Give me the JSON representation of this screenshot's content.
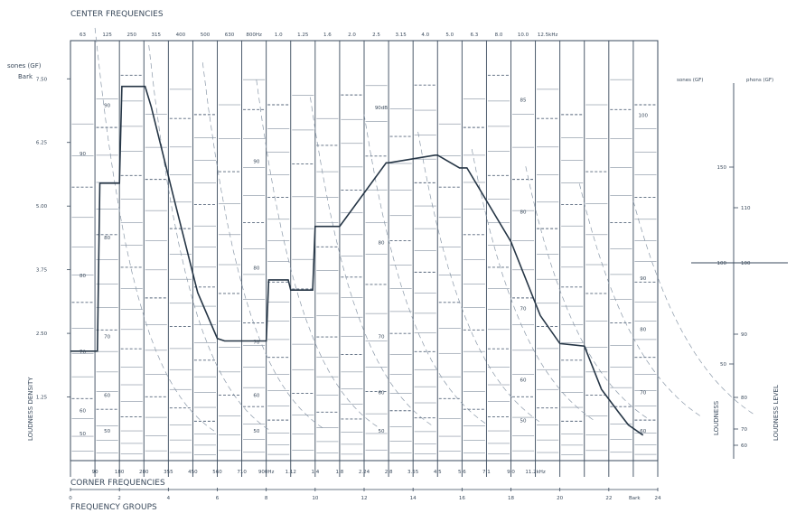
{
  "chart_data": {
    "type": "line",
    "top_title": "CENTER FREQUENCIES",
    "center_frequencies": [
      "63",
      "125",
      "250",
      "315",
      "400",
      "500",
      "630",
      "800Hz",
      "1.0",
      "1.25",
      "1.6",
      "2.0",
      "2.5",
      "3.15",
      "4.0",
      "5.0",
      "6.3",
      "8.0",
      "10.0",
      "12.5kHz"
    ],
    "corner_title": "CORNER FREQUENCIES",
    "corner_frequencies": [
      "90",
      "180",
      "280",
      "355",
      "450",
      "560",
      "710",
      "900Hz",
      "1.12",
      "1.4",
      "1.8",
      "2.24",
      "2.8",
      "3.55",
      "4.5",
      "5.6",
      "7.1",
      "9.0",
      "11.2kHz"
    ],
    "bottom_title": "FREQUENCY GROUPS",
    "frequency_groups": [
      "0",
      "2",
      "4",
      "6",
      "8",
      "10",
      "12",
      "14",
      "16",
      "18",
      "20",
      "22",
      "24"
    ],
    "bark_unit": "Bark",
    "ylabel_top": "sones (GF)",
    "ylabel_unit": "Bark",
    "ylabel_side": "LOUDNESS DENSITY",
    "y_ticks": [
      "1.25",
      "2.50",
      "3.75",
      "5.00",
      "6.25",
      "7.50"
    ],
    "ylim": [
      0,
      8.25
    ],
    "xlim_bark": [
      0,
      24
    ],
    "band_edges_bark": [
      0,
      1,
      2,
      3,
      4,
      5,
      6,
      7,
      8,
      9,
      10,
      11,
      12,
      13,
      14,
      15,
      16,
      17,
      18,
      19,
      20,
      21,
      22,
      23,
      24
    ],
    "series": [
      {
        "x_bark": [
          0,
          0.05,
          1.1,
          1.2,
          2.0,
          2.1,
          3.05,
          3.3,
          4.2,
          5.2,
          6.0,
          6.3,
          8.0,
          8.1,
          8.9,
          9.0,
          9.9,
          10.0,
          10.9,
          11.0,
          12.9,
          13.0,
          14.9,
          15.0,
          15.9,
          16.2,
          18.0,
          19.2,
          20.0,
          21.0,
          21.7,
          22.4,
          22.8,
          23.4
        ],
        "y": [
          2.15,
          2.15,
          2.15,
          5.45,
          5.45,
          7.35,
          7.35,
          6.95,
          5.2,
          3.3,
          2.4,
          2.35,
          2.35,
          3.55,
          3.55,
          3.35,
          3.35,
          4.6,
          4.6,
          4.6,
          5.85,
          5.85,
          6.0,
          6.0,
          5.75,
          5.75,
          4.3,
          2.85,
          2.3,
          2.25,
          1.4,
          0.95,
          0.7,
          0.5
        ]
      }
    ],
    "band_level_labels": [
      {
        "bark": 0.5,
        "y": 0.5,
        "label": "50"
      },
      {
        "bark": 0.5,
        "y": 0.95,
        "label": "60"
      },
      {
        "bark": 0.5,
        "y": 2.1,
        "label": "70"
      },
      {
        "bark": 0.5,
        "y": 3.6,
        "label": "80"
      },
      {
        "bark": 0.5,
        "y": 6.0,
        "label": "90"
      },
      {
        "bark": 1.5,
        "y": 0.55,
        "label": "50"
      },
      {
        "bark": 1.5,
        "y": 1.25,
        "label": "60"
      },
      {
        "bark": 1.5,
        "y": 2.4,
        "label": "70"
      },
      {
        "bark": 1.5,
        "y": 4.35,
        "label": "80"
      },
      {
        "bark": 1.5,
        "y": 6.95,
        "label": "90"
      },
      {
        "bark": 7.6,
        "y": 0.55,
        "label": "50"
      },
      {
        "bark": 7.6,
        "y": 1.25,
        "label": "60"
      },
      {
        "bark": 7.6,
        "y": 2.3,
        "label": "70"
      },
      {
        "bark": 7.6,
        "y": 3.75,
        "label": "80"
      },
      {
        "bark": 7.6,
        "y": 5.85,
        "label": "90"
      },
      {
        "bark": 12.7,
        "y": 0.55,
        "label": "50"
      },
      {
        "bark": 12.7,
        "y": 1.3,
        "label": "60"
      },
      {
        "bark": 12.7,
        "y": 2.4,
        "label": "70"
      },
      {
        "bark": 12.7,
        "y": 4.25,
        "label": "80"
      },
      {
        "bark": 12.7,
        "y": 6.9,
        "label": "90dB"
      },
      {
        "bark": 18.5,
        "y": 0.75,
        "label": "50"
      },
      {
        "bark": 18.5,
        "y": 1.55,
        "label": "60"
      },
      {
        "bark": 18.5,
        "y": 2.95,
        "label": "70"
      },
      {
        "bark": 18.5,
        "y": 4.85,
        "label": "80"
      },
      {
        "bark": 18.5,
        "y": 7.05,
        "label": "85"
      },
      {
        "bark": 23.4,
        "y": 0.55,
        "label": "60"
      },
      {
        "bark": 23.4,
        "y": 1.3,
        "label": "70"
      },
      {
        "bark": 23.4,
        "y": 2.55,
        "label": "80"
      },
      {
        "bark": 23.4,
        "y": 3.55,
        "label": "90"
      },
      {
        "bark": 23.4,
        "y": 6.75,
        "label": "100"
      }
    ],
    "right_scale": {
      "left_header": "sones (GF)",
      "right_header": "phons (GF)",
      "left_label": "LOUDNESS",
      "right_label": "LOUDNESS LEVEL",
      "left_ticks": [
        "150",
        "100",
        "50"
      ],
      "right_ticks": [
        "110",
        "100",
        "90",
        "80",
        "70",
        "60"
      ],
      "marker_value": "100"
    }
  }
}
